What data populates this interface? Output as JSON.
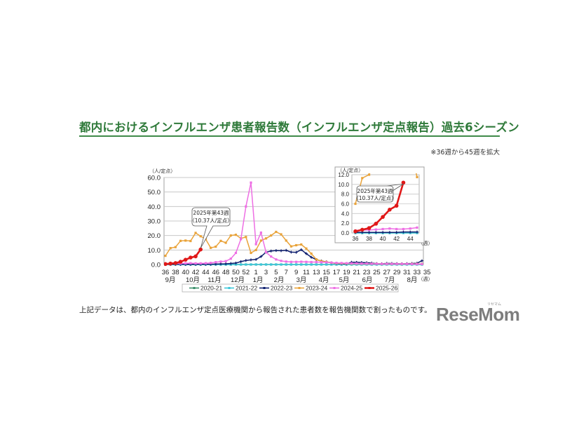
{
  "page": {
    "title": "都内におけるインフルエンザ患者報告数（インフルエンザ定点報告）過去6シーズン",
    "note": "※36週から45週を拡大",
    "caption": "上記データは、都内のインフルエンザ定点医療機関から報告された患者数を報告機関数で割ったものです。",
    "logo": "ReseMom",
    "logo_ruby": "リセマム"
  },
  "colors": {
    "title": "#2f7a3a",
    "2020-21": "#3a8f6a",
    "2021-22": "#3cc6d8",
    "2022-23": "#0f1f6e",
    "2023-24": "#e9a33a",
    "2024-25": "#ee6fe4",
    "2025-26": "#e01818"
  },
  "chart_data": [
    {
      "type": "line",
      "title": "都内におけるインフルエンザ患者報告数（インフルエンザ定点報告）過去6シーズン",
      "ylabel": "（人/定点）",
      "xlabel": "（週）",
      "ylim": [
        0,
        60
      ],
      "yticks": [
        "0.0",
        "10.0",
        "20.0",
        "30.0",
        "40.0",
        "50.0",
        "60.0"
      ],
      "x": [
        36,
        37,
        38,
        39,
        40,
        41,
        42,
        43,
        44,
        45,
        46,
        47,
        48,
        49,
        50,
        51,
        52,
        1,
        2,
        3,
        4,
        5,
        6,
        7,
        8,
        9,
        10,
        11,
        12,
        13,
        14,
        15,
        16,
        17,
        18,
        19,
        20,
        21,
        22,
        23,
        24,
        25,
        26,
        27,
        28,
        29,
        30,
        31,
        32,
        33,
        34,
        35
      ],
      "xtick_labels": [
        "36",
        "38",
        "40",
        "42",
        "44",
        "46",
        "48",
        "50",
        "52",
        "1",
        "3",
        "5",
        "7",
        "9",
        "11",
        "13",
        "15",
        "17",
        "19",
        "21",
        "23",
        "25",
        "27",
        "29",
        "31",
        "33",
        "35"
      ],
      "month_labels": [
        "9月",
        "10月",
        "11月",
        "12月",
        "1月",
        "2月",
        "3月",
        "4月",
        "5月",
        "6月",
        "7月",
        "8月"
      ],
      "grid": true,
      "legend_position": "bottom",
      "series": [
        {
          "name": "2020-21",
          "values": [
            0,
            0,
            0,
            0,
            0,
            0,
            0,
            0,
            0,
            0,
            0,
            0,
            0,
            0,
            0,
            0,
            0,
            0,
            0,
            0,
            0,
            0,
            0,
            0,
            0,
            0,
            0,
            0,
            0,
            0,
            0,
            0,
            0,
            0,
            0,
            0,
            0,
            0,
            0,
            0,
            0,
            0,
            0,
            0,
            0,
            0,
            0,
            0,
            0,
            0,
            0,
            0
          ]
        },
        {
          "name": "2021-22",
          "values": [
            0,
            0,
            0,
            0,
            0,
            0,
            0,
            0,
            0,
            0,
            0,
            0,
            0,
            0,
            0,
            0,
            0,
            0,
            0,
            0,
            0,
            0,
            0,
            0,
            0,
            0,
            0,
            0,
            0,
            0,
            0,
            0,
            0,
            0,
            0,
            0,
            0,
            0,
            0,
            0,
            0,
            0,
            0,
            0,
            0,
            0,
            0,
            0,
            0,
            0,
            0,
            0
          ]
        },
        {
          "name": "2022-23",
          "values": [
            0.1,
            0.1,
            0.1,
            0.1,
            0.1,
            0.1,
            0.1,
            0.2,
            0.2,
            0.2,
            0.3,
            0.4,
            0.5,
            0.7,
            1.0,
            2.0,
            2.8,
            3.2,
            3.5,
            5.5,
            8.5,
            9.3,
            9.6,
            9.5,
            9.8,
            8.5,
            8.4,
            10.2,
            7.5,
            5.0,
            3.4,
            2.4,
            1.8,
            1.2,
            0.8,
            0.6,
            0.5,
            1.6,
            1.5,
            1.4,
            1.2,
            1.0,
            0.6,
            0.5,
            0.8,
            0.7,
            0.6,
            0.5,
            0.6,
            0.7,
            0.9,
            2.6
          ]
        },
        {
          "name": "2023-24",
          "values": [
            6.0,
            11.3,
            12.0,
            16.3,
            16.5,
            16.2,
            21.8,
            19.5,
            17.5,
            11.5,
            12.3,
            16.3,
            15.0,
            20.0,
            20.5,
            18.0,
            19.0,
            8.0,
            10.0,
            16.5,
            18.0,
            20.0,
            22.5,
            20.8,
            16.5,
            12.5,
            13.3,
            13.8,
            11.0,
            7.5,
            3.5,
            2.3,
            1.8,
            1.2,
            0.9,
            0.8,
            0.7,
            0.6,
            0.6,
            0.5,
            0.5,
            0.5,
            0.5,
            0.4,
            0.4,
            0.4,
            0.4,
            0.4,
            0.4,
            0.4,
            0.4,
            0.4
          ]
        },
        {
          "name": "2024-25",
          "values": [
            0.5,
            0.6,
            0.6,
            0.7,
            0.8,
            0.9,
            0.8,
            0.8,
            0.9,
            1.1,
            1.6,
            2.0,
            2.3,
            4.0,
            8.0,
            17.5,
            40.0,
            56.5,
            14.0,
            22.0,
            8.5,
            5.5,
            3.5,
            2.5,
            2.0,
            1.8,
            1.8,
            1.9,
            1.8,
            1.7,
            1.7,
            1.6,
            1.5,
            1.3,
            1.1,
            1.0,
            0.9,
            0.8,
            0.7,
            0.6,
            0.6,
            0.5,
            0.5,
            0.4,
            0.4,
            0.4,
            0.4,
            0.4,
            0.4,
            0.3,
            0.3,
            0.3
          ]
        },
        {
          "name": "2025-26",
          "values": [
            0.33,
            0.66,
            1.0,
            1.9,
            3.3,
            4.8,
            5.6,
            10.37
          ]
        }
      ],
      "annotations": [
        {
          "text_line1": "2025年第43週",
          "text_line2": "（10.37人/定点）",
          "x": 43,
          "y": 10.37
        }
      ]
    },
    {
      "type": "line",
      "title": "36週から45週 拡大",
      "ylabel": "（人/定点）",
      "xlabel": "（週）",
      "ylim": [
        0,
        12
      ],
      "yticks": [
        "0.0",
        "2.0",
        "4.0",
        "6.0",
        "8.0",
        "10.0",
        "12.0"
      ],
      "x": [
        36,
        37,
        38,
        39,
        40,
        41,
        42,
        43,
        44,
        45
      ],
      "xtick_labels": [
        "36",
        "38",
        "40",
        "42",
        "44"
      ],
      "grid": true,
      "series": [
        {
          "name": "2020-21",
          "values": [
            0,
            0,
            0,
            0,
            0,
            0,
            0,
            0,
            0,
            0
          ]
        },
        {
          "name": "2021-22",
          "values": [
            0,
            0,
            0,
            0,
            0,
            0,
            0,
            0,
            0,
            0
          ]
        },
        {
          "name": "2022-23",
          "values": [
            0.1,
            0.1,
            0.1,
            0.1,
            0.1,
            0.1,
            0.1,
            0.2,
            0.2,
            0.2
          ]
        },
        {
          "name": "2023-24",
          "values": [
            6.0,
            11.3,
            12.0,
            16.3,
            16.5,
            16.2,
            21.8,
            19.5,
            17.5,
            11.5
          ]
        },
        {
          "name": "2024-25",
          "values": [
            0.5,
            0.6,
            0.6,
            0.7,
            0.8,
            0.9,
            0.8,
            0.8,
            0.9,
            1.1
          ]
        },
        {
          "name": "2025-26",
          "values": [
            0.33,
            0.66,
            1.0,
            1.9,
            3.3,
            4.8,
            5.6,
            10.37
          ]
        }
      ],
      "annotations": [
        {
          "text_line1": "2025年第43週",
          "text_line2": "（10.37人/定点）",
          "x": 43,
          "y": 10.37
        }
      ]
    }
  ],
  "legend": [
    "2020-21",
    "2021-22",
    "2022-23",
    "2023-24",
    "2024-25",
    "2025-26"
  ]
}
